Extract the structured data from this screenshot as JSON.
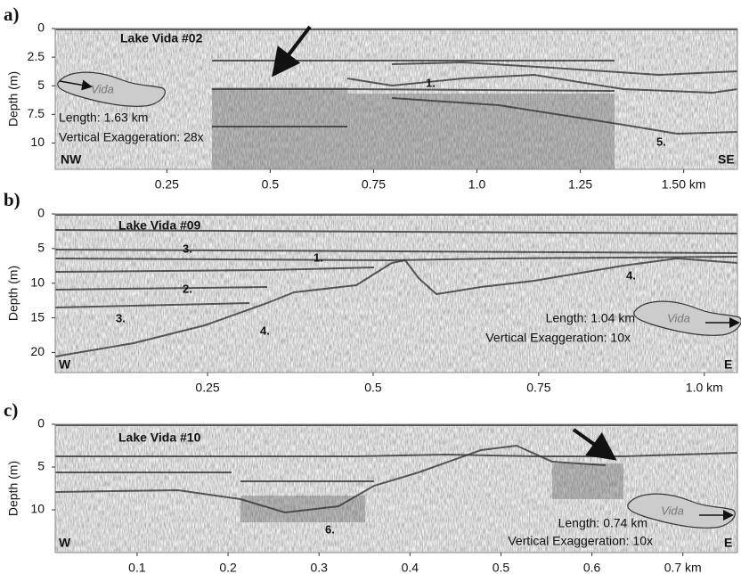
{
  "panels": [
    {
      "label": "a)",
      "title": "Lake Vida #02",
      "y_label": "Depth (m)",
      "ylim": [
        0,
        12.3
      ],
      "yticks": [
        0,
        2.5,
        5,
        7.5,
        10
      ],
      "xlim": [
        -0.02,
        1.63
      ],
      "xticks": [
        0.25,
        0.5,
        0.75,
        {
          "value": 1.0,
          "label": "1.0"
        },
        1.25,
        {
          "value": 1.5,
          "label": "1.50 km"
        }
      ],
      "lake": "Vida",
      "length": "Length: 1.63 km",
      "exaggeration": "Vertical Exaggeration: 28x",
      "left_corner": "NW",
      "right_corner": "SE",
      "annotations": [
        "1.",
        "5."
      ]
    },
    {
      "label": "b)",
      "title": "Lake Vida #09",
      "y_label": "Depth (m)",
      "ylim": [
        0,
        22.9
      ],
      "yticks": [
        0,
        5,
        10,
        15,
        20
      ],
      "xlim": [
        0.02,
        1.05
      ],
      "xticks": [
        0.25,
        0.5,
        0.75,
        {
          "value": 1.0,
          "label": "1.0 km"
        }
      ],
      "lake": "Vida",
      "length": "Length: 1.04 km",
      "exaggeration": "Vertical Exaggeration: 10x",
      "left_corner": "W",
      "right_corner": "E",
      "annotations": [
        "3.",
        "1.",
        "2.",
        "3.",
        "4.",
        "4."
      ]
    },
    {
      "label": "c)",
      "title": "Lake Vida #10",
      "y_label": "Depth (m)",
      "ylim": [
        0,
        15
      ],
      "yticks": [
        0,
        5,
        10
      ],
      "xlim": [
        0.01,
        0.76
      ],
      "xticks": [
        0.1,
        0.2,
        0.3,
        0.4,
        0.5,
        0.6,
        {
          "value": 0.7,
          "label": "0.7 km"
        }
      ],
      "lake": "Vida",
      "length": "Length: 0.74 km",
      "exaggeration": "Vertical Exaggeration: 10x",
      "left_corner": "W",
      "right_corner": "E",
      "annotations": [
        "6."
      ]
    }
  ]
}
